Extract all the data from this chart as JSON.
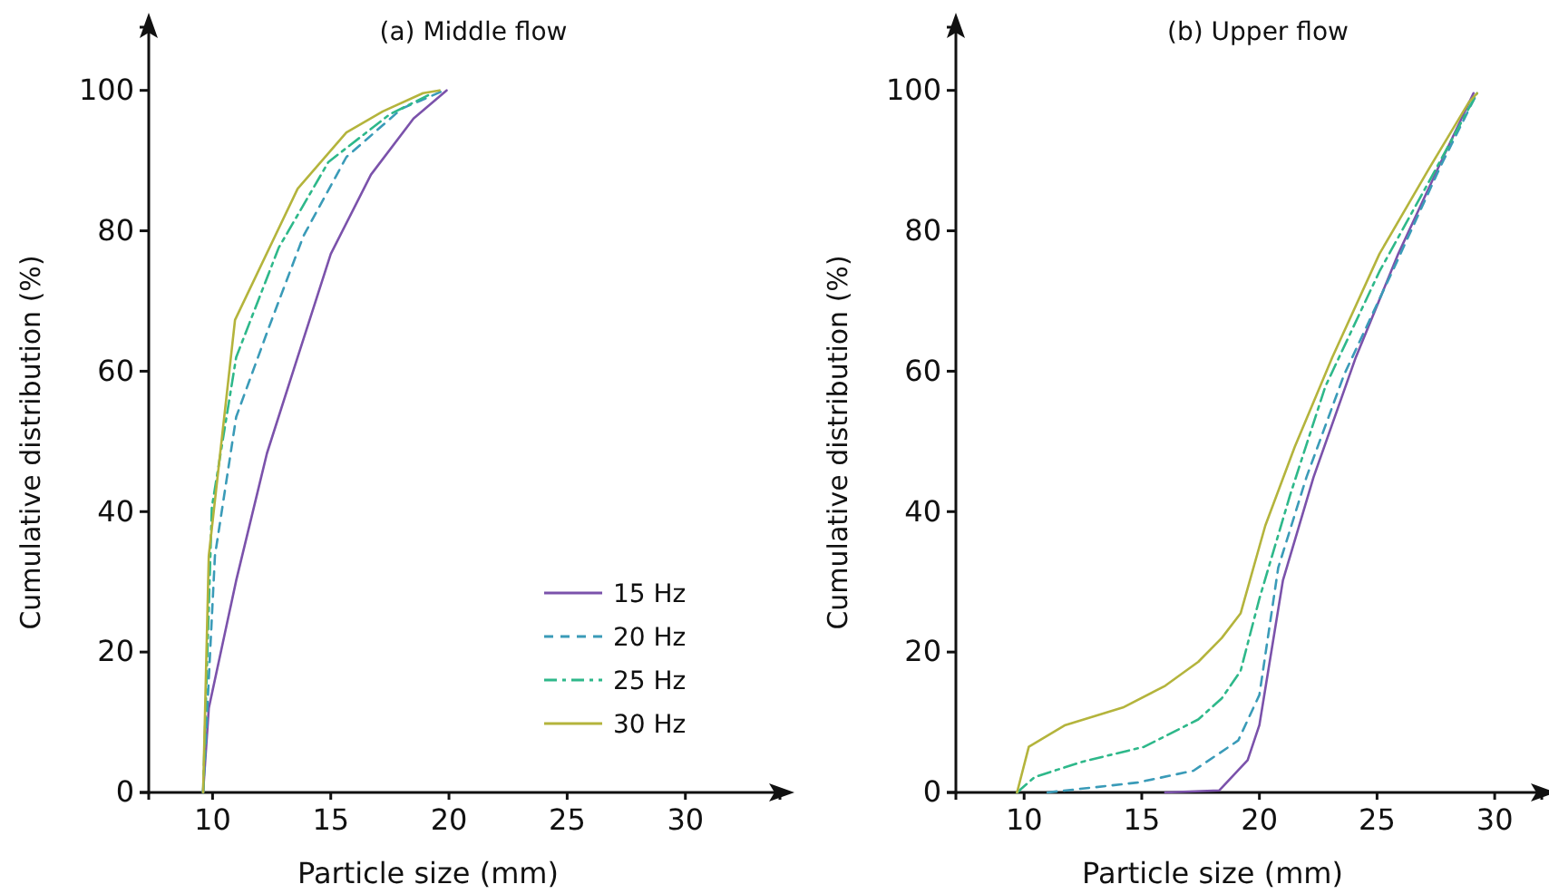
{
  "chart_data": [
    {
      "type": "line",
      "title": "(a) Middle flow",
      "xlabel": "Particle size (mm)",
      "ylabel": "Cumulative distribution (%)",
      "xlim": [
        7.3,
        34
      ],
      "xticks": [
        10,
        15,
        20,
        25,
        30
      ],
      "ylim": [
        0,
        109
      ],
      "yticks": [
        0,
        20,
        40,
        60,
        80,
        100
      ],
      "grid": false,
      "legend": "bottom right",
      "marker": "none",
      "series": [
        {
          "name": "15 Hz",
          "color": "#7b52ab",
          "line_style": "solid",
          "x": [
            9.6,
            9.84,
            11,
            12.3,
            13.6,
            15,
            16.7,
            18.5,
            19.9
          ],
          "values": [
            0,
            12,
            30.2,
            48.3,
            62,
            76.7,
            88,
            96,
            100
          ]
        },
        {
          "name": "20 Hz",
          "color": "#3a9bb8",
          "line_style": "dashed",
          "x": [
            9.6,
            10.1,
            11,
            12.4,
            13.85,
            15.66,
            18,
            19.8
          ],
          "values": [
            0,
            33.7,
            53.5,
            66.4,
            79.3,
            90.5,
            97.4,
            100
          ]
        },
        {
          "name": "25 Hz",
          "color": "#2eb88a",
          "line_style": "dashdot",
          "x": [
            9.6,
            9.97,
            11,
            12.8,
            14.9,
            17.5,
            19.3
          ],
          "values": [
            0,
            40.6,
            62,
            77.6,
            89.8,
            96.6,
            99.6
          ]
        },
        {
          "name": "30 Hz",
          "color": "#b4b43c",
          "line_style": "solid",
          "x": [
            9.6,
            9.84,
            10.95,
            13.6,
            15.66,
            17.2,
            18.9,
            19.6
          ],
          "values": [
            0,
            33.7,
            67.3,
            86,
            94,
            97,
            99.6,
            100
          ]
        }
      ]
    },
    {
      "type": "line",
      "title": "(b) Upper flow",
      "xlabel": "Particle size (mm)",
      "ylabel": "Cumulative distribution (%)",
      "xlim": [
        7.1,
        32
      ],
      "xticks": [
        10,
        15,
        20,
        25,
        30
      ],
      "ylim": [
        0,
        109
      ],
      "yticks": [
        0,
        20,
        40,
        60,
        80,
        100
      ],
      "grid": false,
      "legend": false,
      "marker": "none",
      "series": [
        {
          "color": "#7b52ab",
          "line_style": "solid",
          "x": [
            16,
            18.3,
            19.5,
            20,
            21,
            22.3,
            24.1,
            25.9,
            27.7,
            29.1
          ],
          "values": [
            0,
            0.3,
            4.6,
            9.6,
            30.2,
            44.9,
            62,
            76.7,
            89.7,
            99.6
          ]
        },
        {
          "color": "#3a9bb8",
          "line_style": "dashed",
          "x": [
            11,
            14.8,
            17.2,
            19.1,
            20,
            20.8,
            22,
            23.6,
            25.65,
            27.7,
            29.25
          ],
          "values": [
            0,
            1.4,
            3.1,
            7.4,
            13.9,
            32,
            44.9,
            59.5,
            74.2,
            89.2,
            99.6
          ]
        },
        {
          "color": "#2eb88a",
          "line_style": "dashdot",
          "x": [
            9.7,
            10.45,
            12.5,
            15.1,
            17.4,
            18.4,
            19.2,
            20,
            21.3,
            22.8,
            25.1,
            27.5,
            29.25
          ],
          "values": [
            0,
            2.2,
            4.4,
            6.5,
            10.4,
            13.4,
            17.3,
            27.6,
            42.3,
            57.8,
            74.2,
            88.8,
            99.6
          ]
        },
        {
          "color": "#b4b43c",
          "line_style": "solid",
          "x": [
            9.7,
            10.2,
            11.75,
            14.2,
            16,
            17.4,
            18.4,
            19.2,
            20.25,
            21.5,
            23.1,
            25.1,
            27.2,
            28.9,
            29.25
          ],
          "values": [
            0,
            6.5,
            9.6,
            12.1,
            15.2,
            18.6,
            22,
            25.5,
            38,
            49.2,
            62,
            76.7,
            88.8,
            98.3,
            99.6
          ]
        }
      ]
    }
  ]
}
